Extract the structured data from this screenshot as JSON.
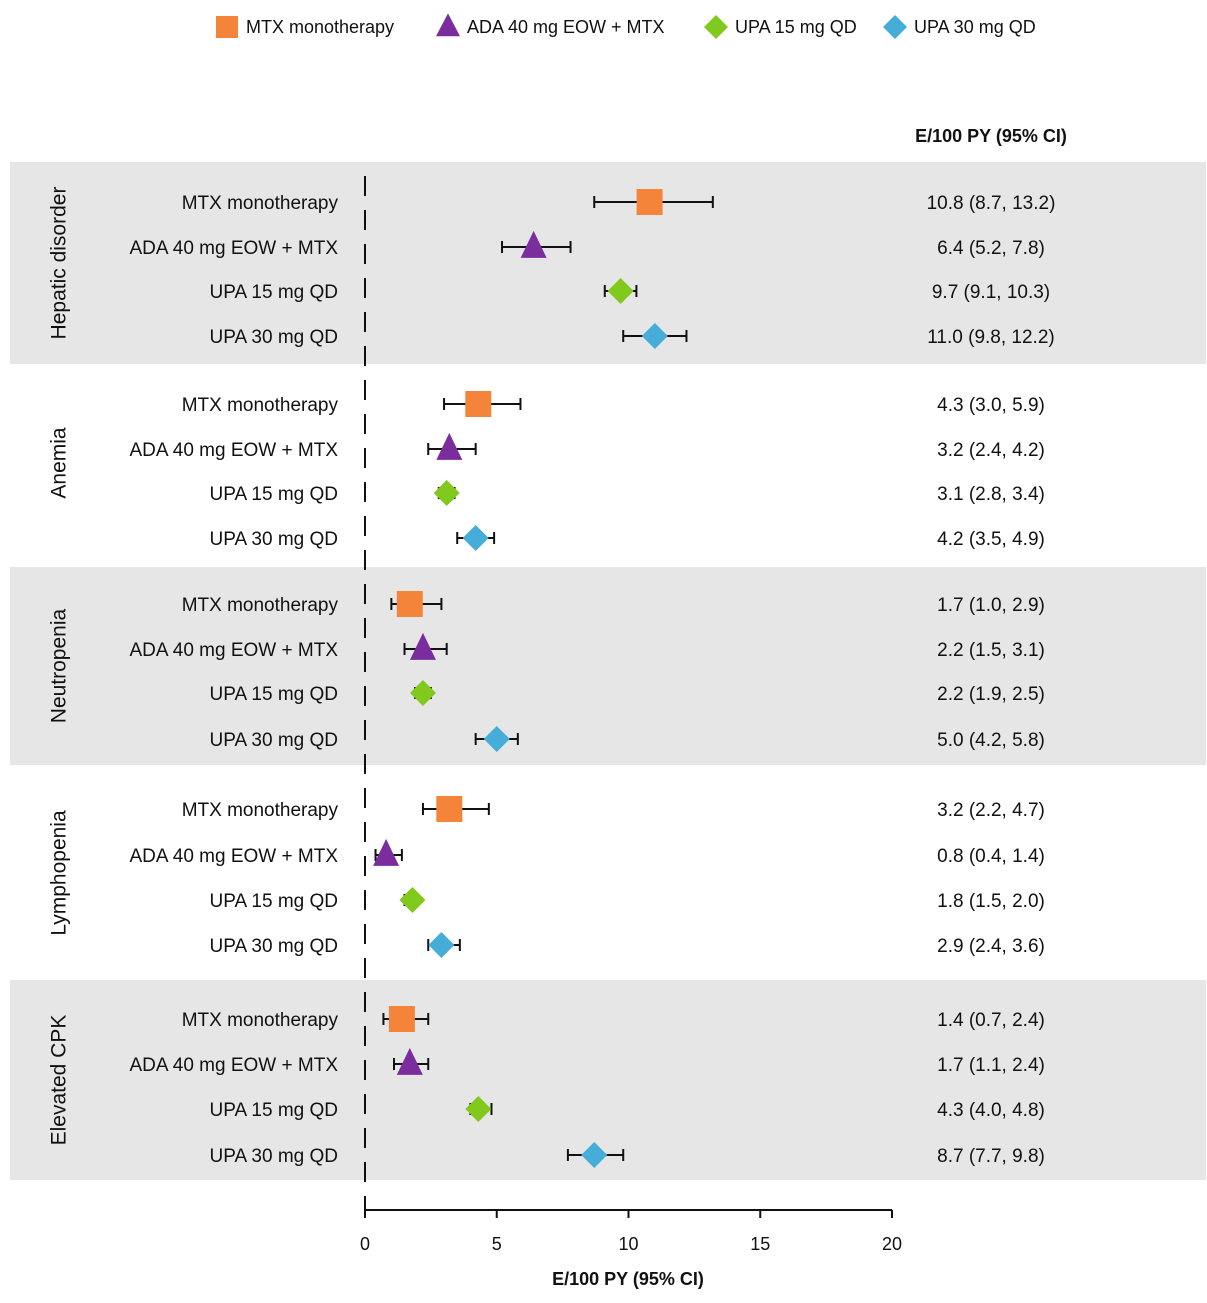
{
  "chart_data": {
    "type": "forest",
    "legend": [
      {
        "label": "MTX  monotherapy",
        "marker": "square",
        "color": "#F4843A"
      },
      {
        "label": "ADA 40 mg EOW + MTX",
        "marker": "triangle",
        "color": "#7B2D9E"
      },
      {
        "label": "UPA 15 mg QD",
        "marker": "diamond",
        "color": "#82C91E"
      },
      {
        "label": "UPA 30 mg QD",
        "marker": "diamond",
        "color": "#45ADD8"
      }
    ],
    "ci_column_header": "E/100 PY (95% CI)",
    "xlabel": "E/100 PY (95% CI)",
    "xlim": [
      0,
      20
    ],
    "xticks": [
      0,
      5,
      10,
      15,
      20
    ],
    "reference_line": 0,
    "groups": [
      {
        "name": "Hepatic disorder",
        "shaded": true,
        "rows": [
          {
            "label": "MTX monotherapy",
            "series": 0,
            "estimate": 10.8,
            "low": 8.7,
            "high": 13.2,
            "ci_text": "10.8 (8.7, 13.2)"
          },
          {
            "label": "ADA 40 mg EOW + MTX",
            "series": 1,
            "estimate": 6.4,
            "low": 5.2,
            "high": 7.8,
            "ci_text": "6.4 (5.2, 7.8)"
          },
          {
            "label": "UPA 15 mg QD",
            "series": 2,
            "estimate": 9.7,
            "low": 9.1,
            "high": 10.3,
            "ci_text": "9.7 (9.1, 10.3)"
          },
          {
            "label": "UPA 30 mg QD",
            "series": 3,
            "estimate": 11.0,
            "low": 9.8,
            "high": 12.2,
            "ci_text": "11.0 (9.8, 12.2)"
          }
        ]
      },
      {
        "name": "Anemia",
        "shaded": false,
        "rows": [
          {
            "label": "MTX monotherapy",
            "series": 0,
            "estimate": 4.3,
            "low": 3.0,
            "high": 5.9,
            "ci_text": "4.3 (3.0, 5.9)"
          },
          {
            "label": "ADA 40 mg EOW + MTX",
            "series": 1,
            "estimate": 3.2,
            "low": 2.4,
            "high": 4.2,
            "ci_text": "3.2 (2.4, 4.2)"
          },
          {
            "label": "UPA 15 mg QD",
            "series": 2,
            "estimate": 3.1,
            "low": 2.8,
            "high": 3.4,
            "ci_text": "3.1 (2.8, 3.4)"
          },
          {
            "label": "UPA 30 mg QD",
            "series": 3,
            "estimate": 4.2,
            "low": 3.5,
            "high": 4.9,
            "ci_text": "4.2 (3.5, 4.9)"
          }
        ]
      },
      {
        "name": "Neutropenia",
        "shaded": true,
        "rows": [
          {
            "label": "MTX monotherapy",
            "series": 0,
            "estimate": 1.7,
            "low": 1.0,
            "high": 2.9,
            "ci_text": "1.7 (1.0, 2.9)"
          },
          {
            "label": "ADA 40 mg EOW + MTX",
            "series": 1,
            "estimate": 2.2,
            "low": 1.5,
            "high": 3.1,
            "ci_text": "2.2 (1.5, 3.1)"
          },
          {
            "label": "UPA 15 mg QD",
            "series": 2,
            "estimate": 2.2,
            "low": 1.9,
            "high": 2.5,
            "ci_text": "2.2 (1.9, 2.5)"
          },
          {
            "label": "UPA 30 mg QD",
            "series": 3,
            "estimate": 5.0,
            "low": 4.2,
            "high": 5.8,
            "ci_text": "5.0 (4.2, 5.8)"
          }
        ]
      },
      {
        "name": "Lymphopenia",
        "shaded": false,
        "rows": [
          {
            "label": "MTX monotherapy",
            "series": 0,
            "estimate": 3.2,
            "low": 2.2,
            "high": 4.7,
            "ci_text": "3.2 (2.2, 4.7)"
          },
          {
            "label": "ADA 40 mg EOW + MTX",
            "series": 1,
            "estimate": 0.8,
            "low": 0.4,
            "high": 1.4,
            "ci_text": "0.8 (0.4, 1.4)"
          },
          {
            "label": "UPA 15 mg QD",
            "series": 2,
            "estimate": 1.8,
            "low": 1.5,
            "high": 2.0,
            "ci_text": "1.8 (1.5, 2.0)"
          },
          {
            "label": "UPA 30 mg QD",
            "series": 3,
            "estimate": 2.9,
            "low": 2.4,
            "high": 3.6,
            "ci_text": "2.9 (2.4, 3.6)"
          }
        ]
      },
      {
        "name": "Elevated CPK",
        "shaded": true,
        "rows": [
          {
            "label": "MTX monotherapy",
            "series": 0,
            "estimate": 1.4,
            "low": 0.7,
            "high": 2.4,
            "ci_text": "1.4 (0.7, 2.4)"
          },
          {
            "label": "ADA 40 mg EOW + MTX",
            "series": 1,
            "estimate": 1.7,
            "low": 1.1,
            "high": 2.4,
            "ci_text": "1.7 (1.1, 2.4)"
          },
          {
            "label": "UPA 15 mg QD",
            "series": 2,
            "estimate": 4.3,
            "low": 4.0,
            "high": 4.8,
            "ci_text": "4.3 (4.0, 4.8)"
          },
          {
            "label": "UPA 30 mg QD",
            "series": 3,
            "estimate": 8.7,
            "low": 7.7,
            "high": 9.8,
            "ci_text": "8.7 (7.7, 9.8)"
          }
        ]
      }
    ],
    "band_color": "#E6E6E6"
  }
}
